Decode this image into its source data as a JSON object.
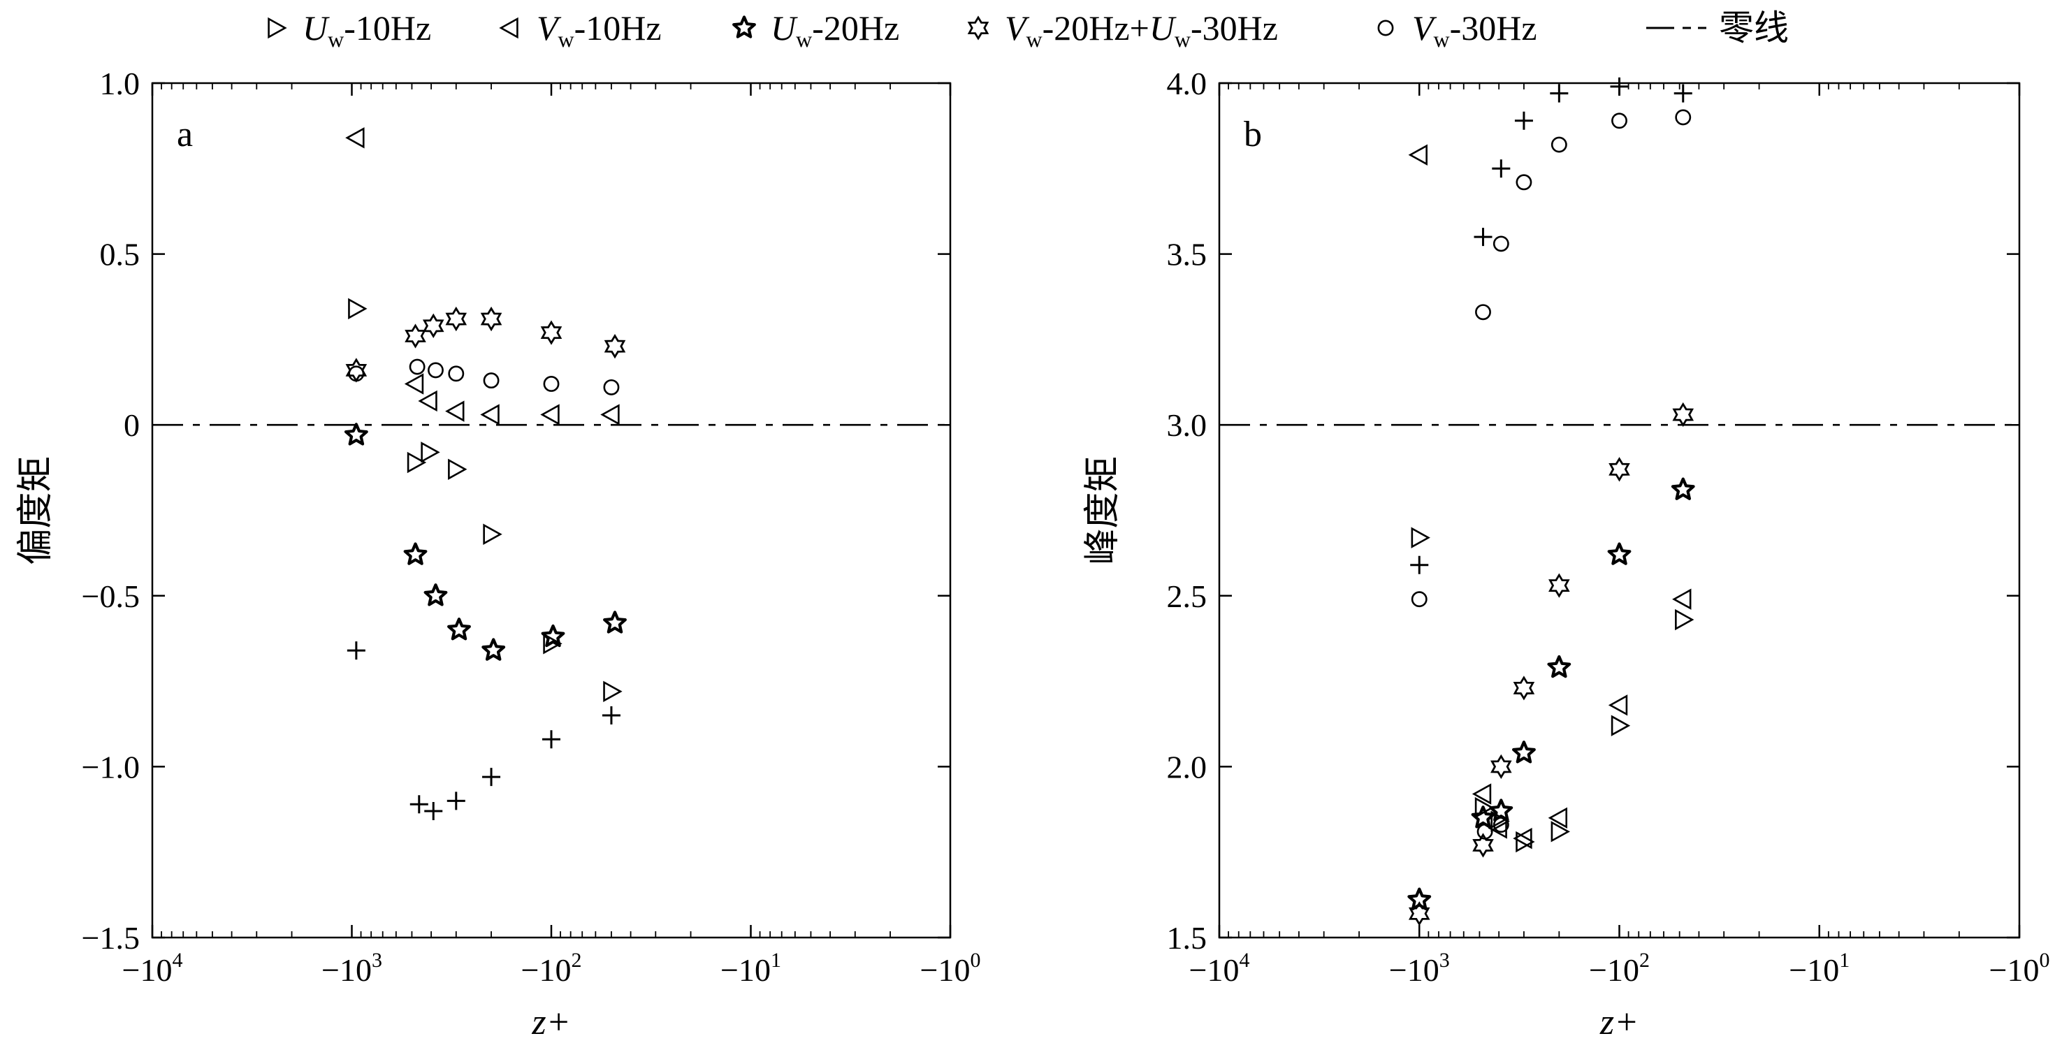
{
  "legend": {
    "placement": "top",
    "entries": [
      {
        "key": "uw10",
        "marker": "triangle-right",
        "var": "U",
        "sub": "w",
        "rest": "-10Hz"
      },
      {
        "key": "vw10",
        "marker": "triangle-left",
        "var": "V",
        "sub": "w",
        "rest": "-10Hz"
      },
      {
        "key": "uw20",
        "marker": "star-bold",
        "var": "U",
        "sub": "w",
        "rest": "-20Hz"
      },
      {
        "key": "vw20uw30",
        "marker": "hexagram",
        "var": "V",
        "sub": "w",
        "rest": "-20Hz+",
        "var2": "U",
        "sub2": "w",
        "rest2": "-30Hz"
      },
      {
        "key": "vw30",
        "marker": "circle",
        "var": "V",
        "sub": "w",
        "rest": "-30Hz"
      },
      {
        "key": "zero",
        "marker": "dash-dot",
        "text": "零线"
      }
    ]
  },
  "chart_data": [
    {
      "type": "scatter",
      "panel_label": "a",
      "xlabel": "z+",
      "ylabel": "偏度矩",
      "xscale": "log",
      "xlim": [
        -10000,
        -1
      ],
      "x_ticks": [
        -10000,
        -1000,
        -100,
        -10,
        -1
      ],
      "x_tick_labels": [
        {
          "base": "−10",
          "exp": "4"
        },
        {
          "base": "−10",
          "exp": "3"
        },
        {
          "base": "−10",
          "exp": "2"
        },
        {
          "base": "−10",
          "exp": "1"
        },
        {
          "base": "−10",
          "exp": "0"
        }
      ],
      "ylim": [
        -1.5,
        1.0
      ],
      "y_ticks": [
        -1.5,
        -1.0,
        -0.5,
        0,
        0.5,
        1.0
      ],
      "y_tick_labels": [
        "−1.5",
        "−1.0",
        "−0.5",
        "0",
        "0.5",
        "1.0"
      ],
      "reference_line": {
        "y": 0,
        "style": "dash-dot"
      },
      "grid": false,
      "series": [
        {
          "key": "uw10",
          "marker": "triangle-right",
          "points": [
            [
              -950,
              0.34
            ],
            [
              -480,
              -0.11
            ],
            [
              -410,
              -0.08
            ],
            [
              -300,
              -0.13
            ],
            [
              -200,
              -0.32
            ],
            [
              -100,
              -0.64
            ],
            [
              -50,
              -0.78
            ]
          ]
        },
        {
          "key": "vw10",
          "marker": "triangle-left",
          "points": [
            [
              -950,
              0.84
            ],
            [
              -480,
              0.12
            ],
            [
              -410,
              0.07
            ],
            [
              -300,
              0.04
            ],
            [
              -200,
              0.03
            ],
            [
              -100,
              0.03
            ],
            [
              -50,
              0.03
            ]
          ]
        },
        {
          "key": "uw20",
          "marker": "star-bold",
          "points": [
            [
              -950,
              -0.03
            ],
            [
              -480,
              -0.38
            ],
            [
              -380,
              -0.5
            ],
            [
              -290,
              -0.6
            ],
            [
              -195,
              -0.66
            ],
            [
              -98,
              -0.62
            ],
            [
              -48,
              -0.58
            ]
          ]
        },
        {
          "key": "vw20uw30",
          "marker": "hexagram",
          "points": [
            [
              -950,
              0.16
            ],
            [
              -480,
              0.26
            ],
            [
              -390,
              0.29
            ],
            [
              -300,
              0.31
            ],
            [
              -200,
              0.31
            ],
            [
              -100,
              0.27
            ],
            [
              -48,
              0.23
            ]
          ]
        },
        {
          "key": "vw30",
          "marker": "circle",
          "points": [
            [
              -950,
              0.15
            ],
            [
              -470,
              0.17
            ],
            [
              -380,
              0.16
            ],
            [
              -300,
              0.15
            ],
            [
              -200,
              0.13
            ],
            [
              -100,
              0.12
            ],
            [
              -50,
              0.11
            ]
          ]
        },
        {
          "key": "plus",
          "marker": "plus",
          "points": [
            [
              -950,
              -0.66
            ],
            [
              -460,
              -1.11
            ],
            [
              -390,
              -1.13
            ],
            [
              -300,
              -1.1
            ],
            [
              -200,
              -1.03
            ],
            [
              -100,
              -0.92
            ],
            [
              -50,
              -0.85
            ]
          ]
        }
      ]
    },
    {
      "type": "scatter",
      "panel_label": "b",
      "xlabel": "z+",
      "ylabel": "峰度矩",
      "xscale": "log",
      "xlim": [
        -10000,
        -1
      ],
      "x_ticks": [
        -10000,
        -1000,
        -100,
        -10,
        -1
      ],
      "x_tick_labels": [
        {
          "base": "−10",
          "exp": "4"
        },
        {
          "base": "−10",
          "exp": "3"
        },
        {
          "base": "−10",
          "exp": "2"
        },
        {
          "base": "−10",
          "exp": "1"
        },
        {
          "base": "−10",
          "exp": "0"
        }
      ],
      "ylim": [
        1.5,
        4.0
      ],
      "y_ticks": [
        1.5,
        2.0,
        2.5,
        3.0,
        3.5,
        4.0
      ],
      "y_tick_labels": [
        "1.5",
        "2.0",
        "2.5",
        "3.0",
        "3.5",
        "4.0"
      ],
      "reference_line": {
        "y": 3.0,
        "style": "dash-dot"
      },
      "grid": false,
      "series": [
        {
          "key": "uw10",
          "marker": "triangle-right",
          "points": [
            [
              -1000,
              2.67
            ],
            [
              -480,
              1.88
            ],
            [
              -400,
              1.84
            ],
            [
              -300,
              1.78
            ],
            [
              -200,
              1.81
            ],
            [
              -100,
              2.12
            ],
            [
              -48,
              2.43
            ]
          ]
        },
        {
          "key": "vw10",
          "marker": "triangle-left",
          "points": [
            [
              -1000,
              3.79
            ],
            [
              -480,
              1.92
            ],
            [
              -400,
              1.82
            ],
            [
              -300,
              1.79
            ],
            [
              -200,
              1.85
            ],
            [
              -100,
              2.18
            ],
            [
              -48,
              2.49
            ]
          ]
        },
        {
          "key": "uw20",
          "marker": "star-bold",
          "points": [
            [
              -1000,
              1.61
            ],
            [
              -480,
              1.85
            ],
            [
              -390,
              1.87
            ],
            [
              -300,
              2.04
            ],
            [
              -200,
              2.29
            ],
            [
              -100,
              2.62
            ],
            [
              -48,
              2.81
            ]
          ]
        },
        {
          "key": "vw20uw30",
          "marker": "hexagram",
          "points": [
            [
              -1000,
              1.57
            ],
            [
              -480,
              1.77
            ],
            [
              -390,
              2.0
            ],
            [
              -300,
              2.23
            ],
            [
              -200,
              2.53
            ],
            [
              -100,
              2.87
            ],
            [
              -48,
              3.03
            ]
          ]
        },
        {
          "key": "vw30",
          "marker": "circle",
          "points": [
            [
              -1000,
              2.49
            ],
            [
              -480,
              3.33
            ],
            [
              -390,
              3.53
            ],
            [
              -300,
              3.71
            ],
            [
              -200,
              3.82
            ],
            [
              -100,
              3.89
            ],
            [
              -48,
              3.9
            ],
            [
              -470,
              1.81
            ],
            [
              -390,
              1.83
            ]
          ]
        },
        {
          "key": "plus",
          "marker": "plus",
          "points": [
            [
              -1000,
              2.59
            ],
            [
              -480,
              3.55
            ],
            [
              -390,
              3.75
            ],
            [
              -300,
              3.89
            ],
            [
              -200,
              3.97
            ],
            [
              -100,
              3.99
            ],
            [
              -48,
              3.97
            ]
          ]
        }
      ]
    }
  ]
}
